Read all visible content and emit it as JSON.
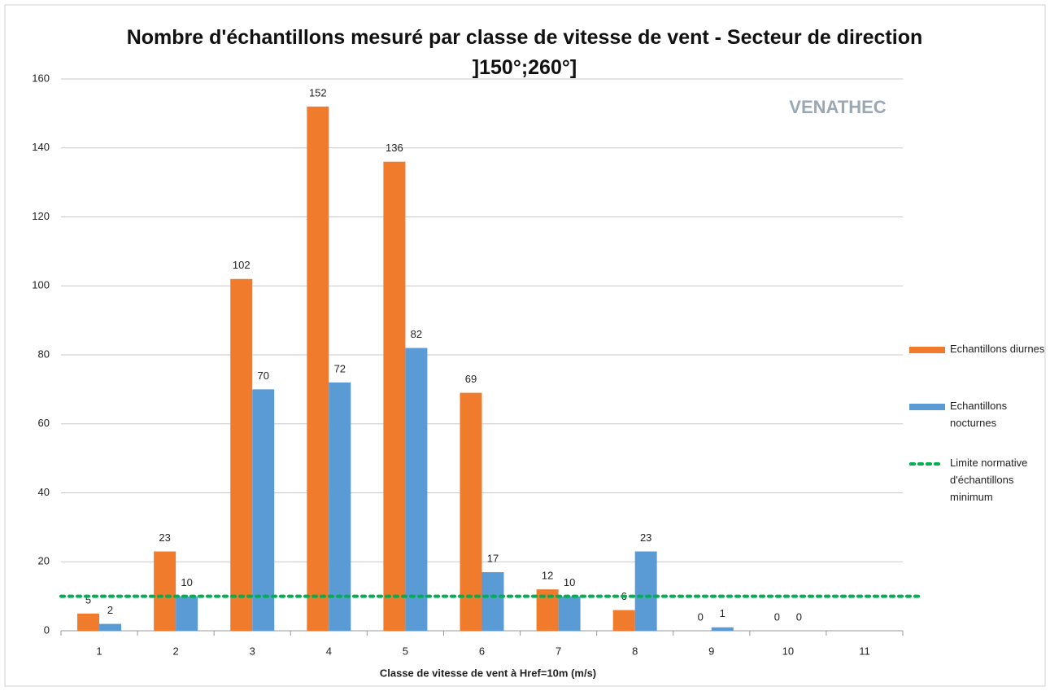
{
  "chart_data": {
    "type": "bar",
    "title": "Nombre d'échantillons mesuré par classe de vitesse de vent - Secteur de direction ]150°;260°]",
    "x_label": "Classe de vitesse de vent à Href=10m (m/s)",
    "watermark": "VENATHEC",
    "categories": [
      "1",
      "2",
      "3",
      "4",
      "5",
      "6",
      "7",
      "8",
      "9",
      "10",
      "11"
    ],
    "series": [
      {
        "name": "Echantillons diurnes",
        "color": "#f07b2c",
        "values": [
          5,
          23,
          102,
          152,
          136,
          69,
          12,
          6,
          0,
          0,
          null
        ]
      },
      {
        "name": "Echantillons nocturnes",
        "color": "#5b9bd5",
        "values": [
          2,
          10,
          70,
          72,
          82,
          17,
          10,
          23,
          1,
          0,
          null
        ]
      }
    ],
    "limit": {
      "name": "Limite normative d'échantillons minimum",
      "value": 10,
      "color": "#00b050"
    },
    "ylim": [
      0,
      160
    ],
    "yticks": [
      0,
      20,
      40,
      60,
      80,
      100,
      120,
      140,
      160
    ],
    "grid": true
  }
}
